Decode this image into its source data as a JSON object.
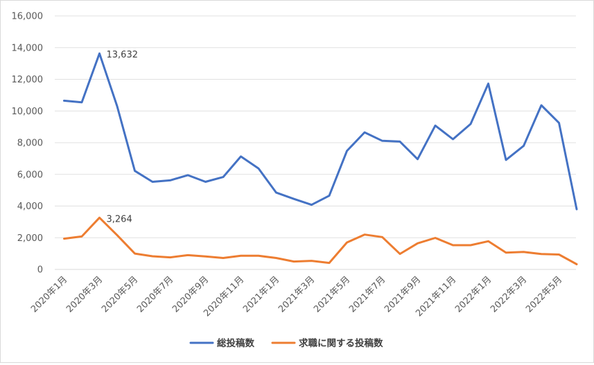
{
  "chart_data": {
    "type": "line",
    "categories": [
      "2020年1月",
      "2020年2月",
      "2020年3月",
      "2020年4月",
      "2020年5月",
      "2020年6月",
      "2020年7月",
      "2020年8月",
      "2020年9月",
      "2020年10月",
      "2020年11月",
      "2020年12月",
      "2021年1月",
      "2021年2月",
      "2021年3月",
      "2021年4月",
      "2021年5月",
      "2021年6月",
      "2021年7月",
      "2021年8月",
      "2021年9月",
      "2021年10月",
      "2021年11月",
      "2021年12月",
      "2022年1月",
      "2022年2月",
      "2022年3月",
      "2022年4月",
      "2022年5月",
      "2022年6月"
    ],
    "x_tick_labels": [
      "2020年1月",
      "2020年3月",
      "2020年5月",
      "2020年7月",
      "2020年9月",
      "2020年11月",
      "2021年1月",
      "2021年3月",
      "2021年5月",
      "2021年7月",
      "2021年9月",
      "2021年11月",
      "2022年1月",
      "2022年3月",
      "2022年5月"
    ],
    "y_tick_labels": [
      "0",
      "2,000",
      "4,000",
      "6,000",
      "8,000",
      "10,000",
      "12,000",
      "14,000",
      "16,000"
    ],
    "ylim": [
      0,
      16000
    ],
    "grid": true,
    "legend_position": "bottom",
    "series": [
      {
        "name": "総投稿数",
        "color": "#4472c4",
        "values": [
          10650,
          10550,
          13632,
          10300,
          6220,
          5530,
          5620,
          5950,
          5530,
          5830,
          7130,
          6370,
          4850,
          4450,
          4080,
          4650,
          7480,
          8650,
          8120,
          8070,
          6960,
          9080,
          8220,
          9180,
          11730,
          6910,
          7800,
          10360,
          9250,
          3800
        ]
      },
      {
        "name": "求職に関する投稿数",
        "color": "#ed7d31",
        "values": [
          1940,
          2080,
          3264,
          2160,
          1000,
          830,
          760,
          900,
          820,
          720,
          860,
          860,
          720,
          500,
          540,
          410,
          1700,
          2200,
          2040,
          980,
          1650,
          1990,
          1530,
          1530,
          1780,
          1060,
          1100,
          970,
          940,
          330
        ]
      }
    ],
    "annotations": [
      {
        "series": 0,
        "index": 2,
        "text": "13,632"
      },
      {
        "series": 1,
        "index": 2,
        "text": "3,264"
      }
    ]
  }
}
